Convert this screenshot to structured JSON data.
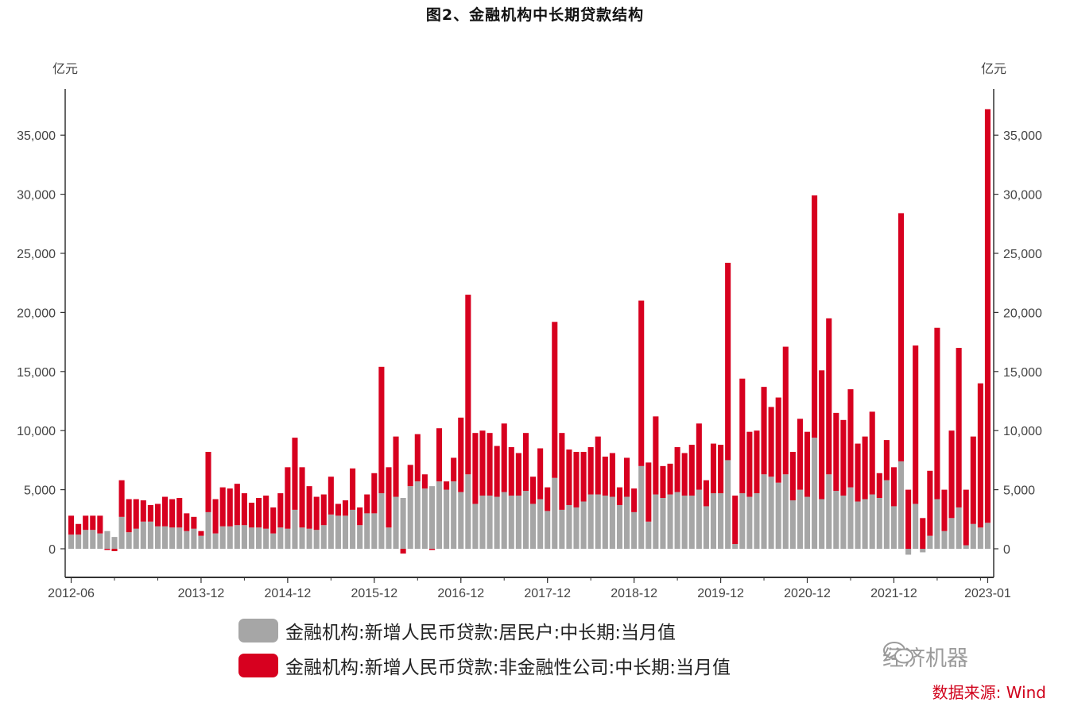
{
  "title": "图2、金融机构中长期贷款结构",
  "axes": {
    "left_unit": "亿元",
    "right_unit": "亿元"
  },
  "legend": {
    "household": "金融机构:新增人民币贷款:居民户:中长期:当月值",
    "corporate": "金融机构:新增人民币贷款:非金融性公司:中长期:当月值"
  },
  "brand": "经济机器",
  "source": "数据来源: Wind",
  "colors": {
    "household": "#a6a6a6",
    "corporate": "#d7001f",
    "axis": "#333333"
  },
  "chart_data": {
    "type": "bar",
    "stacked": true,
    "ylim": [
      -2500,
      38000
    ],
    "yticks": [
      0,
      5000,
      10000,
      15000,
      20000,
      25000,
      30000,
      35000
    ],
    "ytick_labels": [
      "0",
      "5,000",
      "10,000",
      "15,000",
      "20,000",
      "25,000",
      "30,000",
      "35,000"
    ],
    "xtick_labels": [
      "2012-06",
      "2013-12",
      "2014-12",
      "2015-12",
      "2016-12",
      "2017-12",
      "2018-12",
      "2019-12",
      "2020-12",
      "2021-12",
      "2023-01"
    ],
    "xtick_months": [
      "2012-06",
      "2013-12",
      "2014-12",
      "2015-12",
      "2016-12",
      "2017-12",
      "2018-12",
      "2019-12",
      "2020-12",
      "2021-12",
      "2023-01"
    ],
    "grid": false,
    "legend_position": "bottom",
    "start_month": "2012-06",
    "series": [
      {
        "name": "金融机构:新增人民币贷款:居民户:中长期:当月值",
        "values": [
          1200,
          1200,
          1600,
          1600,
          1300,
          1500,
          1000,
          2700,
          1400,
          1700,
          2300,
          2300,
          1900,
          1900,
          1800,
          1800,
          1500,
          1700,
          1100,
          3100,
          1300,
          1900,
          1900,
          2000,
          2000,
          1800,
          1800,
          1700,
          1300,
          1800,
          1700,
          3300,
          1800,
          1700,
          1600,
          2000,
          2900,
          2800,
          2800,
          3300,
          2000,
          3000,
          3000,
          4700,
          1800,
          4400,
          4300,
          5300,
          5700,
          5100,
          5300,
          5700,
          5000,
          5700,
          4800,
          6300,
          3800,
          4500,
          4500,
          4400,
          4800,
          4500,
          4500,
          4900,
          3800,
          4200,
          3200,
          6000,
          3300,
          3700,
          3500,
          4000,
          4600,
          4600,
          4500,
          4400,
          3700,
          4400,
          3100,
          7000,
          2300,
          4600,
          4300,
          4600,
          4800,
          4500,
          4500,
          5000,
          3600,
          4700,
          4700,
          7500,
          400,
          4700,
          4400,
          4700,
          6300,
          6100,
          5600,
          6300,
          4100,
          5000,
          4400,
          9400,
          4200,
          6300,
          4900,
          4500,
          5200,
          4000,
          4200,
          4600,
          4300,
          5800,
          3600,
          7400,
          -500,
          3800,
          -300,
          1100,
          4200,
          1500,
          2600,
          3500,
          300,
          2100,
          1800,
          2200
        ],
        "color": "#a6a6a6"
      },
      {
        "name": "金融机构:新增人民币贷款:非金融性公司:中长期:当月值",
        "values": [
          1600,
          900,
          1200,
          1200,
          1500,
          -100,
          -200,
          3100,
          2800,
          2500,
          1800,
          1400,
          1900,
          2500,
          2400,
          2500,
          1500,
          1000,
          400,
          5100,
          2900,
          3300,
          3200,
          3500,
          2700,
          2100,
          2500,
          2800,
          2200,
          2900,
          5200,
          6100,
          5100,
          3600,
          2800,
          2600,
          3200,
          1000,
          1300,
          3500,
          1500,
          1600,
          3400,
          10700,
          5100,
          5100,
          -400,
          1800,
          4000,
          1200,
          -100,
          4500,
          700,
          2000,
          6300,
          15200,
          6000,
          5500,
          5300,
          4300,
          5800,
          4100,
          3600,
          4900,
          2300,
          4300,
          2000,
          13200,
          6500,
          4700,
          4700,
          4200,
          4000,
          4900,
          3300,
          3700,
          1500,
          3300,
          2000,
          14000,
          5000,
          6600,
          2700,
          2600,
          3800,
          3600,
          4300,
          5600,
          2200,
          4200,
          4100,
          16700,
          4100,
          9700,
          5500,
          5300,
          7400,
          5900,
          7200,
          10800,
          4100,
          6000,
          5500,
          20500,
          10900,
          13200,
          6600,
          6400,
          8300,
          4900,
          5300,
          7000,
          2100,
          3400,
          3300,
          21000,
          5000,
          13400,
          2600,
          5500,
          14500,
          3500,
          7400,
          13500,
          4700,
          7400,
          12200,
          35000
        ],
        "color": "#d7001f"
      }
    ]
  }
}
